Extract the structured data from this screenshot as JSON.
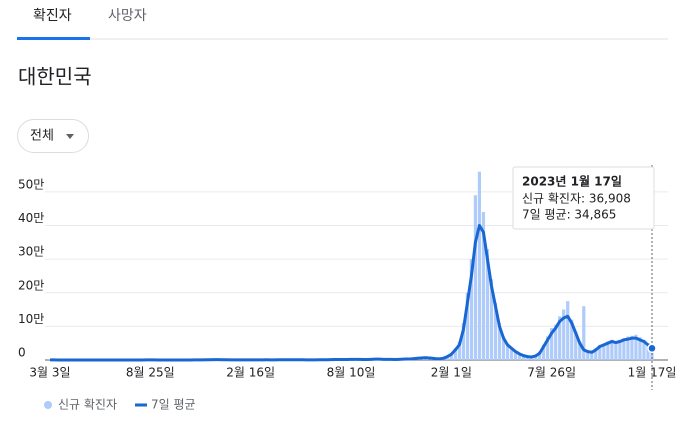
{
  "tabs": [
    "확진자",
    "사망자"
  ],
  "title": "대한민국",
  "dropdown": "전체",
  "chart_data": {
    "type": "bar-line",
    "categories": [
      "3월 3일",
      null,
      null,
      null,
      null,
      null,
      null,
      null,
      null,
      null,
      null,
      null,
      null,
      null,
      null,
      null,
      null,
      null,
      null,
      null,
      null,
      null,
      null,
      null,
      null,
      "8월 25일",
      null,
      null,
      null,
      null,
      null,
      null,
      null,
      null,
      null,
      null,
      null,
      null,
      null,
      null,
      null,
      null,
      null,
      null,
      null,
      null,
      null,
      null,
      null,
      null,
      "2월 16일",
      null,
      null,
      null,
      null,
      null,
      null,
      null,
      null,
      null,
      null,
      null,
      null,
      null,
      null,
      null,
      null,
      null,
      null,
      null,
      null,
      null,
      null,
      null,
      null,
      "8월 10일",
      null,
      null,
      null,
      null,
      null,
      null,
      null,
      null,
      null,
      null,
      null,
      null,
      null,
      null,
      null,
      null,
      null,
      null,
      null,
      null,
      null,
      null,
      null,
      null,
      "2월 1일",
      null,
      null,
      null,
      null,
      null,
      null,
      null,
      null,
      null,
      null,
      null,
      null,
      null,
      null,
      null,
      null,
      null,
      null,
      null,
      null,
      null,
      null,
      null,
      null,
      "7월 26일",
      null,
      null,
      null,
      null,
      null,
      null,
      null,
      null,
      null,
      null,
      null,
      null,
      null,
      null,
      null,
      null,
      null,
      null,
      null,
      null,
      null,
      null,
      null,
      null,
      "1월 17일"
    ],
    "series": [
      {
        "name": "신규 확진자",
        "color": "#aecbfa",
        "kind": "bar",
        "values": [
          500,
          400,
          150,
          100,
          90,
          50,
          30,
          20,
          20,
          30,
          40,
          40,
          50,
          40,
          50,
          50,
          60,
          50,
          40,
          40,
          40,
          30,
          30,
          100,
          250,
          300,
          250,
          150,
          100,
          100,
          70,
          70,
          80,
          100,
          90,
          100,
          200,
          300,
          500,
          700,
          900,
          1000,
          1000,
          800,
          600,
          500,
          400,
          400,
          400,
          400,
          450,
          400,
          400,
          500,
          600,
          500,
          500,
          600,
          600,
          700,
          600,
          600,
          600,
          600,
          500,
          500,
          500,
          600,
          650,
          700,
          1000,
          1300,
          1500,
          1500,
          1600,
          1800,
          1800,
          1700,
          1600,
          1500,
          2000,
          2500,
          2500,
          2000,
          1800,
          1700,
          1500,
          2000,
          2500,
          3000,
          3500,
          4500,
          5500,
          6500,
          6500,
          5500,
          4000,
          3500,
          5000,
          10000,
          20000,
          35000,
          55000,
          110000,
          200000,
          300000,
          490000,
          560000,
          440000,
          330000,
          240000,
          170000,
          110000,
          70000,
          48000,
          37000,
          27000,
          19000,
          14000,
          11000,
          10000,
          14000,
          25000,
          45000,
          70000,
          95000,
          105000,
          130000,
          150000,
          175000,
          120000,
          85000,
          55000,
          160000,
          28000,
          25000,
          35000,
          45000,
          48000,
          55000,
          60000,
          55000,
          60000,
          65000,
          70000,
          72000,
          75000,
          68000,
          60000,
          50000,
          36908
        ]
      },
      {
        "name": "7일 평균",
        "color": "#1967d2",
        "kind": "line",
        "values": [
          500,
          400,
          150,
          100,
          90,
          50,
          30,
          20,
          20,
          30,
          40,
          40,
          50,
          40,
          50,
          50,
          60,
          50,
          40,
          40,
          40,
          30,
          30,
          100,
          250,
          300,
          250,
          150,
          100,
          100,
          70,
          70,
          80,
          100,
          90,
          100,
          200,
          300,
          500,
          700,
          900,
          1000,
          1000,
          800,
          600,
          500,
          400,
          400,
          400,
          400,
          450,
          400,
          400,
          500,
          600,
          500,
          500,
          600,
          600,
          700,
          600,
          600,
          600,
          600,
          500,
          500,
          500,
          600,
          650,
          700,
          1000,
          1300,
          1500,
          1500,
          1600,
          1800,
          1800,
          1700,
          1600,
          1500,
          2000,
          2500,
          2500,
          2000,
          1800,
          1700,
          1500,
          2000,
          2500,
          3000,
          3500,
          4500,
          5500,
          6500,
          6500,
          5500,
          4000,
          3500,
          5000,
          10000,
          17000,
          30000,
          45000,
          90000,
          170000,
          250000,
          350000,
          400000,
          380000,
          300000,
          220000,
          160000,
          100000,
          65000,
          45000,
          35000,
          25000,
          18000,
          13000,
          10000,
          9000,
          12000,
          20000,
          40000,
          60000,
          80000,
          95000,
          115000,
          125000,
          130000,
          110000,
          80000,
          50000,
          30000,
          25000,
          23000,
          30000,
          40000,
          45000,
          50000,
          55000,
          52000,
          55000,
          60000,
          62000,
          65000,
          65000,
          60000,
          55000,
          45000,
          34865
        ]
      }
    ],
    "ylim": [
      0,
      580000
    ],
    "yticks": [
      0,
      {
        "value": 100000,
        "label": "10만"
      },
      {
        "value": 200000,
        "label": "20만"
      },
      {
        "value": 300000,
        "label": "30만"
      },
      {
        "value": 400000,
        "label": "40만"
      },
      {
        "value": 500000,
        "label": "50만"
      }
    ],
    "grid": true,
    "tooltip": {
      "title": "2023년 1월 17일",
      "lines": [
        "신규 확진자: 36,908",
        "7일 평균: 34,865"
      ]
    }
  }
}
